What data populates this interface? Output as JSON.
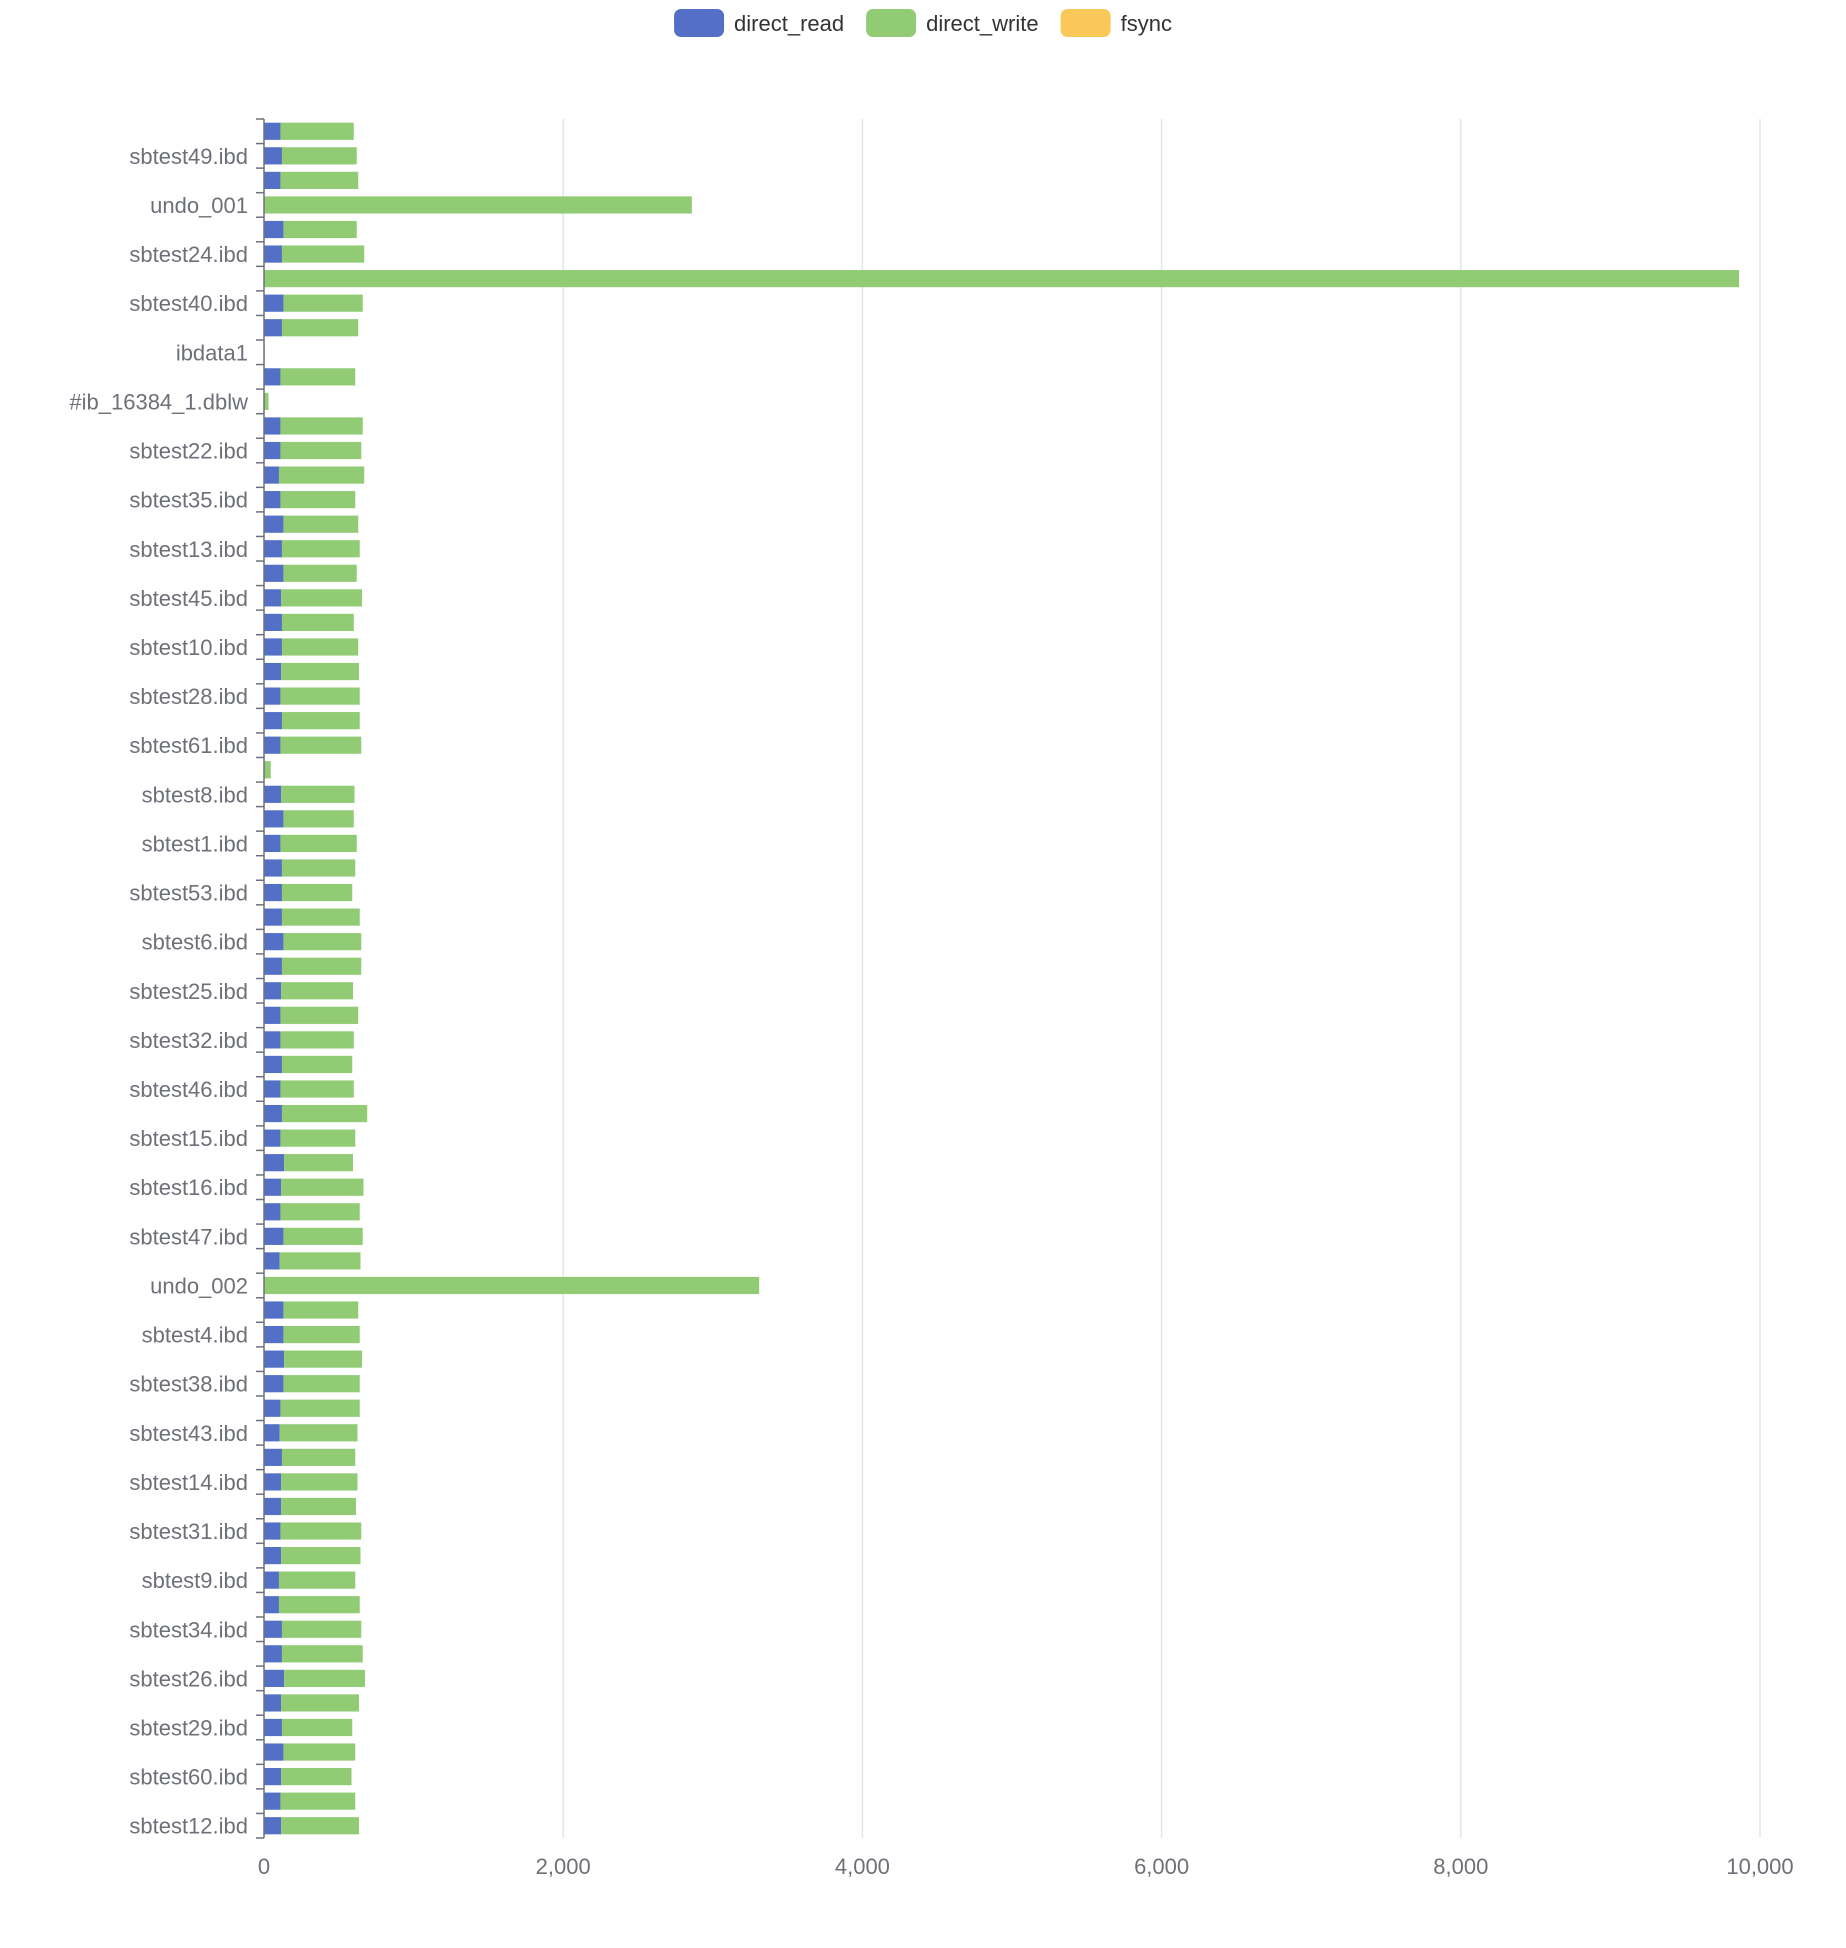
{
  "chart_data": {
    "type": "bar",
    "orientation": "horizontal",
    "stacked": true,
    "legend_position": "top-center",
    "grid": true,
    "xlim": [
      0,
      10000
    ],
    "x_ticks": [
      "0",
      "2,000",
      "4,000",
      "6,000",
      "8,000",
      "10,000"
    ],
    "categories": [
      "",
      "sbtest49.ibd",
      "",
      "undo_001",
      "",
      "sbtest24.ibd",
      "",
      "sbtest40.ibd",
      "",
      "ibdata1",
      "",
      "#ib_16384_1.dblw",
      "",
      "sbtest22.ibd",
      "",
      "sbtest35.ibd",
      "",
      "sbtest13.ibd",
      "",
      "sbtest45.ibd",
      "",
      "sbtest10.ibd",
      "",
      "sbtest28.ibd",
      "",
      "sbtest61.ibd",
      "",
      "sbtest8.ibd",
      "",
      "sbtest1.ibd",
      "",
      "sbtest53.ibd",
      "",
      "sbtest6.ibd",
      "",
      "sbtest25.ibd",
      "",
      "sbtest32.ibd",
      "",
      "sbtest46.ibd",
      "",
      "sbtest15.ibd",
      "",
      "sbtest16.ibd",
      "",
      "sbtest47.ibd",
      "",
      "undo_002",
      "",
      "sbtest4.ibd",
      "",
      "sbtest38.ibd",
      "",
      "sbtest43.ibd",
      "",
      "sbtest14.ibd",
      "",
      "sbtest31.ibd",
      "",
      "sbtest9.ibd",
      "",
      "sbtest34.ibd",
      "",
      "sbtest26.ibd",
      "",
      "sbtest29.ibd",
      "",
      "sbtest60.ibd",
      "",
      "sbtest12.ibd"
    ],
    "series": [
      {
        "name": "direct_read",
        "color": "#5470c6",
        "values": [
          110,
          120,
          110,
          0,
          130,
          120,
          0,
          130,
          120,
          0,
          110,
          0,
          110,
          110,
          100,
          110,
          130,
          120,
          130,
          115,
          120,
          120,
          115,
          110,
          120,
          110,
          0,
          115,
          130,
          110,
          120,
          120,
          120,
          130,
          120,
          115,
          110,
          110,
          120,
          110,
          120,
          110,
          135,
          115,
          110,
          130,
          105,
          0,
          130,
          130,
          135,
          130,
          110,
          105,
          120,
          115,
          115,
          110,
          115,
          100,
          100,
          120,
          120,
          135,
          115,
          120,
          130,
          115,
          110,
          115
        ]
      },
      {
        "name": "direct_write",
        "color": "#91cc75",
        "values": [
          490,
          500,
          520,
          2860,
          490,
          550,
          9860,
          530,
          510,
          5,
          500,
          30,
          550,
          540,
          570,
          500,
          500,
          520,
          490,
          540,
          480,
          510,
          520,
          530,
          520,
          540,
          45,
          490,
          470,
          510,
          490,
          470,
          520,
          520,
          530,
          480,
          520,
          490,
          470,
          490,
          570,
          500,
          460,
          550,
          530,
          530,
          540,
          3310,
          500,
          510,
          520,
          510,
          530,
          520,
          490,
          510,
          500,
          540,
          530,
          510,
          540,
          530,
          540,
          540,
          520,
          470,
          480,
          470,
          500,
          520
        ]
      },
      {
        "name": "fsync",
        "color": "#fac858",
        "values": [
          0,
          0,
          0,
          0,
          0,
          0,
          0,
          0,
          0,
          0,
          0,
          0,
          0,
          0,
          0,
          0,
          0,
          0,
          0,
          0,
          0,
          0,
          0,
          0,
          0,
          0,
          0,
          0,
          0,
          0,
          0,
          0,
          0,
          0,
          0,
          0,
          0,
          0,
          0,
          0,
          0,
          0,
          0,
          0,
          0,
          0,
          0,
          0,
          0,
          0,
          0,
          0,
          0,
          0,
          0,
          0,
          0,
          0,
          0,
          0,
          0,
          0,
          0,
          0,
          0,
          0,
          0,
          0,
          0,
          0
        ]
      }
    ]
  }
}
